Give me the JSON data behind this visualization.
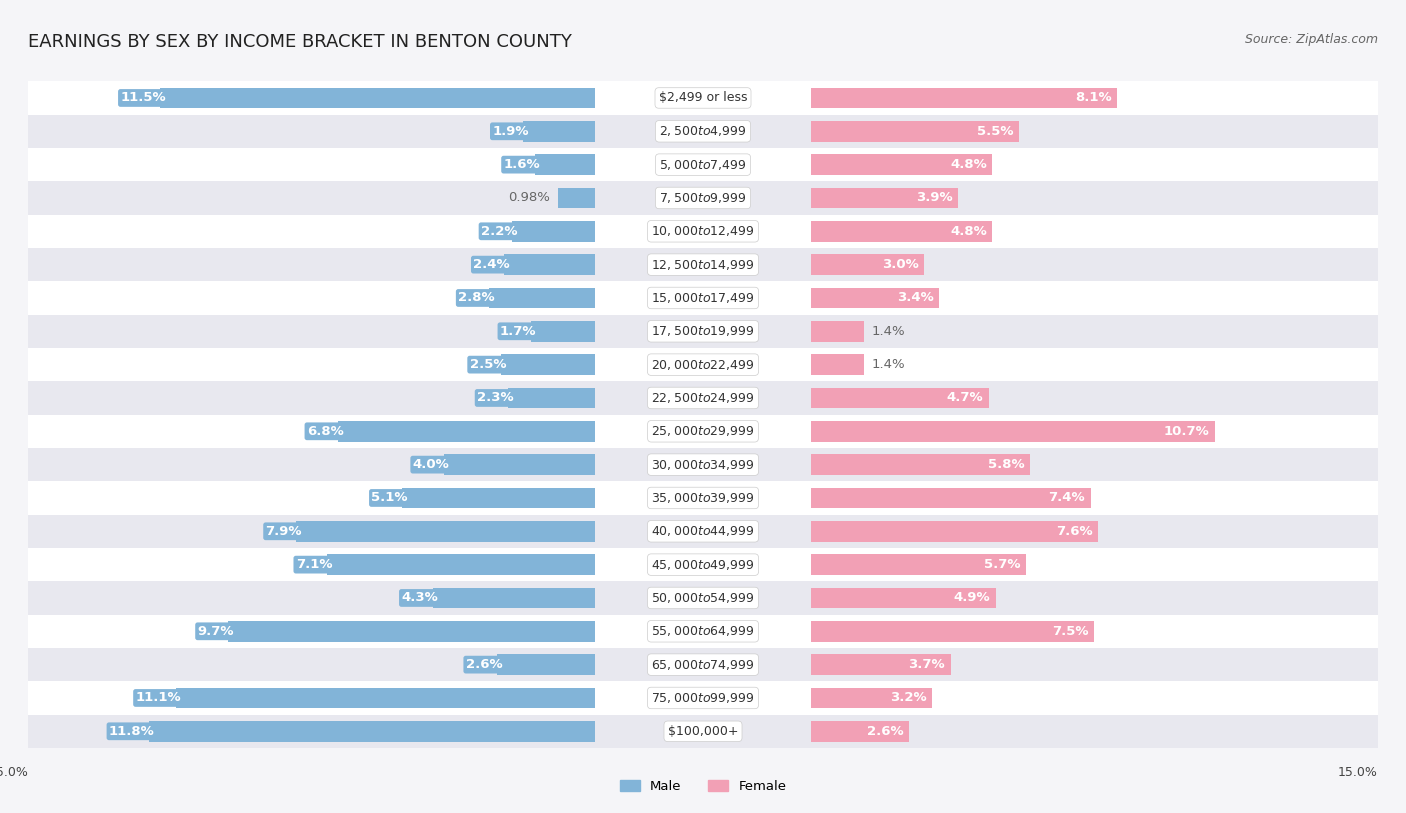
{
  "title": "EARNINGS BY SEX BY INCOME BRACKET IN BENTON COUNTY",
  "source": "Source: ZipAtlas.com",
  "categories": [
    "$2,499 or less",
    "$2,500 to $4,999",
    "$5,000 to $7,499",
    "$7,500 to $9,999",
    "$10,000 to $12,499",
    "$12,500 to $14,999",
    "$15,000 to $17,499",
    "$17,500 to $19,999",
    "$20,000 to $22,499",
    "$22,500 to $24,999",
    "$25,000 to $29,999",
    "$30,000 to $34,999",
    "$35,000 to $39,999",
    "$40,000 to $44,999",
    "$45,000 to $49,999",
    "$50,000 to $54,999",
    "$55,000 to $64,999",
    "$65,000 to $74,999",
    "$75,000 to $99,999",
    "$100,000+"
  ],
  "male_values": [
    11.5,
    1.9,
    1.6,
    0.98,
    2.2,
    2.4,
    2.8,
    1.7,
    2.5,
    2.3,
    6.8,
    4.0,
    5.1,
    7.9,
    7.1,
    4.3,
    9.7,
    2.6,
    11.1,
    11.8
  ],
  "female_values": [
    8.1,
    5.5,
    4.8,
    3.9,
    4.8,
    3.0,
    3.4,
    1.4,
    1.4,
    4.7,
    10.7,
    5.8,
    7.4,
    7.6,
    5.7,
    4.9,
    7.5,
    3.7,
    3.2,
    2.6
  ],
  "male_color": "#82b4d8",
  "female_color": "#f2a0b5",
  "male_label_color_inside": "#ffffff",
  "female_label_color_inside": "#ffffff",
  "label_color_outside": "#666666",
  "row_color_even": "#f5f5f8",
  "row_color_odd": "#e8e8ef",
  "background_color": "#f5f5f8",
  "xlim": 15.0,
  "legend_male": "Male",
  "legend_female": "Female",
  "title_fontsize": 13,
  "label_fontsize": 9.5,
  "category_fontsize": 9,
  "source_fontsize": 9,
  "axis_label_fontsize": 9,
  "inside_threshold": 1.5
}
